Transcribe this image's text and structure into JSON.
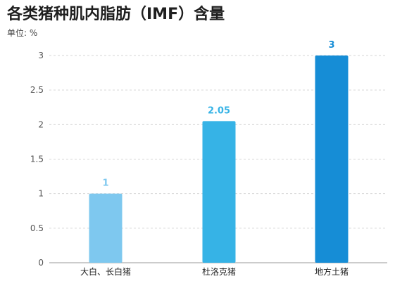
{
  "chart_data": {
    "type": "bar",
    "title": "各类猪种肌内脂肪（IMF）含量",
    "unit_label": "单位: %",
    "categories": [
      "大白、长白猪",
      "杜洛克猪",
      "地方土猪"
    ],
    "values": [
      1,
      2.05,
      3
    ],
    "data_labels": [
      "1",
      "2.05",
      "3"
    ],
    "ylim": [
      0,
      3
    ],
    "yticks": [
      "0",
      "0.5",
      "1",
      "1.5",
      "2",
      "2.5",
      "3"
    ],
    "ytick_values": [
      0,
      0.5,
      1,
      1.5,
      2,
      2.5,
      3
    ],
    "grid": true,
    "colors": [
      "#7ec8ef",
      "#36b3e6",
      "#168dd6"
    ]
  }
}
